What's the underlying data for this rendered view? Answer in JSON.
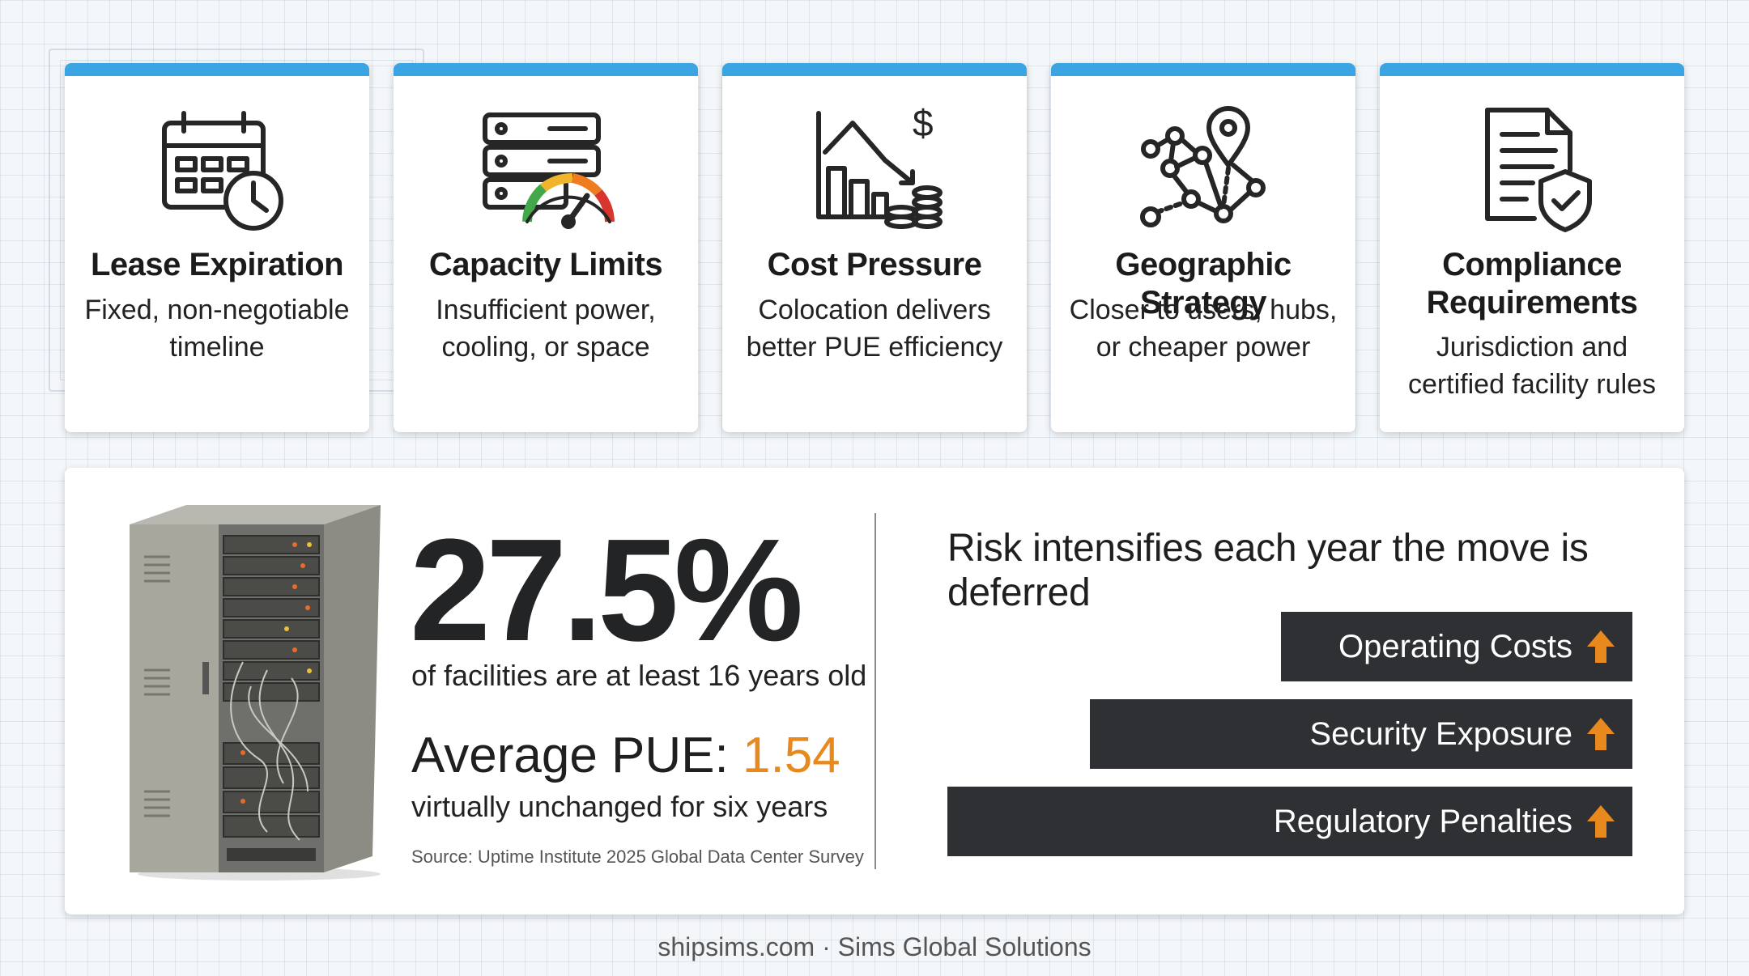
{
  "colors": {
    "accent_blue": "#3aa5e2",
    "accent_orange": "#e8891d",
    "bar_dark": "#2e3033"
  },
  "cards": [
    {
      "icon": "calendar-clock-icon",
      "title": "Lease Expiration",
      "description": [
        "Fixed, non-negotiable",
        "timeline"
      ]
    },
    {
      "icon": "server-gauge-icon",
      "title": "Capacity Limits",
      "description": [
        "Insufficient power,",
        "cooling, or space"
      ]
    },
    {
      "icon": "cost-chart-coins-icon",
      "title": "Cost Pressure",
      "description": [
        "Colocation delivers",
        "better PUE efficiency"
      ]
    },
    {
      "icon": "network-location-icon",
      "title": "Geographic Strategy",
      "description": [
        "Closer to users, hubs,",
        "or cheaper power"
      ]
    },
    {
      "icon": "document-shield-icon",
      "title": [
        "Compliance",
        "Requirements"
      ],
      "description": [
        "Jurisdiction and",
        "certified facility rules"
      ]
    }
  ],
  "stats": {
    "image": "server-rack-image",
    "percentage": "27.5%",
    "percentage_caption": "of facilities are at least 16 years old",
    "pue_label": "Average PUE:",
    "pue_value": "1.54",
    "pue_caption": "virtually unchanged for six years",
    "source": "Source: Uptime Institute 2025 Global Data Center Survey"
  },
  "risk": {
    "title": "Risk intensifies each year the move is deferred",
    "arrow_icon": "arrow-up-icon",
    "items": [
      {
        "label": "Operating Costs"
      },
      {
        "label": "Security Exposure"
      },
      {
        "label": "Regulatory Penalties"
      }
    ]
  },
  "footer": "shipsims.com · Sims Global Solutions"
}
